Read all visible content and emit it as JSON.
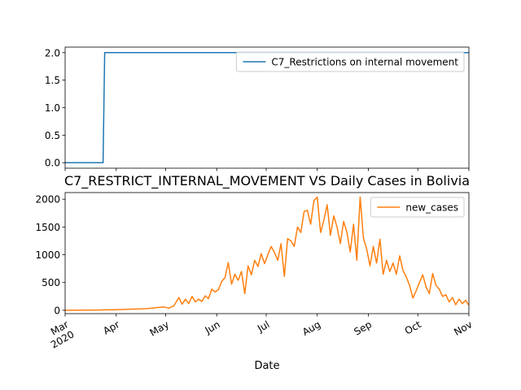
{
  "chart_data": [
    {
      "type": "line",
      "title": "",
      "ylim": [
        -0.1,
        2.1
      ],
      "y_ticks": [
        "0.0",
        "0.5",
        "1.0",
        "1.5",
        "2.0"
      ],
      "legend": {
        "position": "top-right"
      },
      "series": [
        {
          "name": "C7_Restrictions on internal movement",
          "color": "#1f77b4",
          "points": [
            [
              "2020-03-01",
              0
            ],
            [
              "2020-03-24",
              0
            ],
            [
              "2020-03-25",
              2
            ],
            [
              "2020-11-01",
              2
            ]
          ]
        }
      ]
    },
    {
      "type": "line",
      "title": "C7_RESTRICT_INTERNAL_MOVEMENT VS Daily Cases in Bolivia",
      "xlabel": "Date",
      "ylim": [
        -60,
        2120
      ],
      "y_ticks": [
        "0",
        "500",
        "1000",
        "1500",
        "2000"
      ],
      "x_ticks": [
        {
          "date": "2020-03-01",
          "label": "Mar",
          "sublabel": "2020"
        },
        {
          "date": "2020-04-01",
          "label": "Apr"
        },
        {
          "date": "2020-05-01",
          "label": "May"
        },
        {
          "date": "2020-06-01",
          "label": "Jun"
        },
        {
          "date": "2020-07-01",
          "label": "Jul"
        },
        {
          "date": "2020-08-01",
          "label": "Aug"
        },
        {
          "date": "2020-09-01",
          "label": "Sep"
        },
        {
          "date": "2020-10-01",
          "label": "Oct"
        },
        {
          "date": "2020-11-01",
          "label": "Nov"
        }
      ],
      "legend": {
        "position": "top-right"
      },
      "series": [
        {
          "name": "new_cases",
          "color": "#ff7f0e",
          "points": [
            [
              "2020-03-01",
              0
            ],
            [
              "2020-03-10",
              2
            ],
            [
              "2020-03-20",
              5
            ],
            [
              "2020-03-25",
              8
            ],
            [
              "2020-03-30",
              10
            ],
            [
              "2020-04-05",
              15
            ],
            [
              "2020-04-10",
              20
            ],
            [
              "2020-04-15",
              25
            ],
            [
              "2020-04-20",
              30
            ],
            [
              "2020-04-25",
              45
            ],
            [
              "2020-04-30",
              60
            ],
            [
              "2020-05-03",
              40
            ],
            [
              "2020-05-06",
              80
            ],
            [
              "2020-05-09",
              230
            ],
            [
              "2020-05-11",
              110
            ],
            [
              "2020-05-13",
              200
            ],
            [
              "2020-05-15",
              120
            ],
            [
              "2020-05-17",
              250
            ],
            [
              "2020-05-19",
              150
            ],
            [
              "2020-05-21",
              200
            ],
            [
              "2020-05-23",
              160
            ],
            [
              "2020-05-25",
              260
            ],
            [
              "2020-05-27",
              210
            ],
            [
              "2020-05-29",
              380
            ],
            [
              "2020-05-31",
              330
            ],
            [
              "2020-06-02",
              370
            ],
            [
              "2020-06-04",
              520
            ],
            [
              "2020-06-06",
              590
            ],
            [
              "2020-06-08",
              860
            ],
            [
              "2020-06-10",
              470
            ],
            [
              "2020-06-12",
              650
            ],
            [
              "2020-06-14",
              540
            ],
            [
              "2020-06-16",
              700
            ],
            [
              "2020-06-18",
              300
            ],
            [
              "2020-06-20",
              800
            ],
            [
              "2020-06-22",
              640
            ],
            [
              "2020-06-24",
              900
            ],
            [
              "2020-06-26",
              790
            ],
            [
              "2020-06-28",
              1020
            ],
            [
              "2020-06-30",
              840
            ],
            [
              "2020-07-02",
              1000
            ],
            [
              "2020-07-04",
              1150
            ],
            [
              "2020-07-06",
              1040
            ],
            [
              "2020-07-08",
              900
            ],
            [
              "2020-07-10",
              1200
            ],
            [
              "2020-07-12",
              610
            ],
            [
              "2020-07-14",
              1290
            ],
            [
              "2020-07-16",
              1250
            ],
            [
              "2020-07-18",
              1150
            ],
            [
              "2020-07-20",
              1500
            ],
            [
              "2020-07-22",
              1400
            ],
            [
              "2020-07-24",
              1780
            ],
            [
              "2020-07-26",
              1800
            ],
            [
              "2020-07-28",
              1550
            ],
            [
              "2020-07-30",
              1980
            ],
            [
              "2020-08-01",
              2040
            ],
            [
              "2020-08-03",
              1400
            ],
            [
              "2020-08-05",
              1620
            ],
            [
              "2020-08-07",
              1900
            ],
            [
              "2020-08-09",
              1350
            ],
            [
              "2020-08-11",
              1700
            ],
            [
              "2020-08-13",
              1500
            ],
            [
              "2020-08-15",
              1200
            ],
            [
              "2020-08-17",
              1600
            ],
            [
              "2020-08-19",
              1400
            ],
            [
              "2020-08-21",
              1050
            ],
            [
              "2020-08-23",
              1550
            ],
            [
              "2020-08-25",
              900
            ],
            [
              "2020-08-27",
              2040
            ],
            [
              "2020-08-29",
              1300
            ],
            [
              "2020-08-31",
              1100
            ],
            [
              "2020-09-02",
              800
            ],
            [
              "2020-09-04",
              1150
            ],
            [
              "2020-09-06",
              850
            ],
            [
              "2020-09-08",
              1280
            ],
            [
              "2020-09-10",
              650
            ],
            [
              "2020-09-12",
              900
            ],
            [
              "2020-09-14",
              700
            ],
            [
              "2020-09-16",
              850
            ],
            [
              "2020-09-18",
              650
            ],
            [
              "2020-09-20",
              980
            ],
            [
              "2020-09-22",
              720
            ],
            [
              "2020-09-24",
              600
            ],
            [
              "2020-09-26",
              450
            ],
            [
              "2020-09-28",
              220
            ],
            [
              "2020-09-30",
              350
            ],
            [
              "2020-10-02",
              500
            ],
            [
              "2020-10-04",
              640
            ],
            [
              "2020-10-06",
              420
            ],
            [
              "2020-10-08",
              300
            ],
            [
              "2020-10-10",
              660
            ],
            [
              "2020-10-12",
              450
            ],
            [
              "2020-10-14",
              380
            ],
            [
              "2020-10-16",
              250
            ],
            [
              "2020-10-18",
              280
            ],
            [
              "2020-10-20",
              150
            ],
            [
              "2020-10-22",
              230
            ],
            [
              "2020-10-24",
              100
            ],
            [
              "2020-10-26",
              200
            ],
            [
              "2020-10-28",
              120
            ],
            [
              "2020-10-30",
              180
            ],
            [
              "2020-11-01",
              90
            ]
          ]
        }
      ]
    }
  ]
}
